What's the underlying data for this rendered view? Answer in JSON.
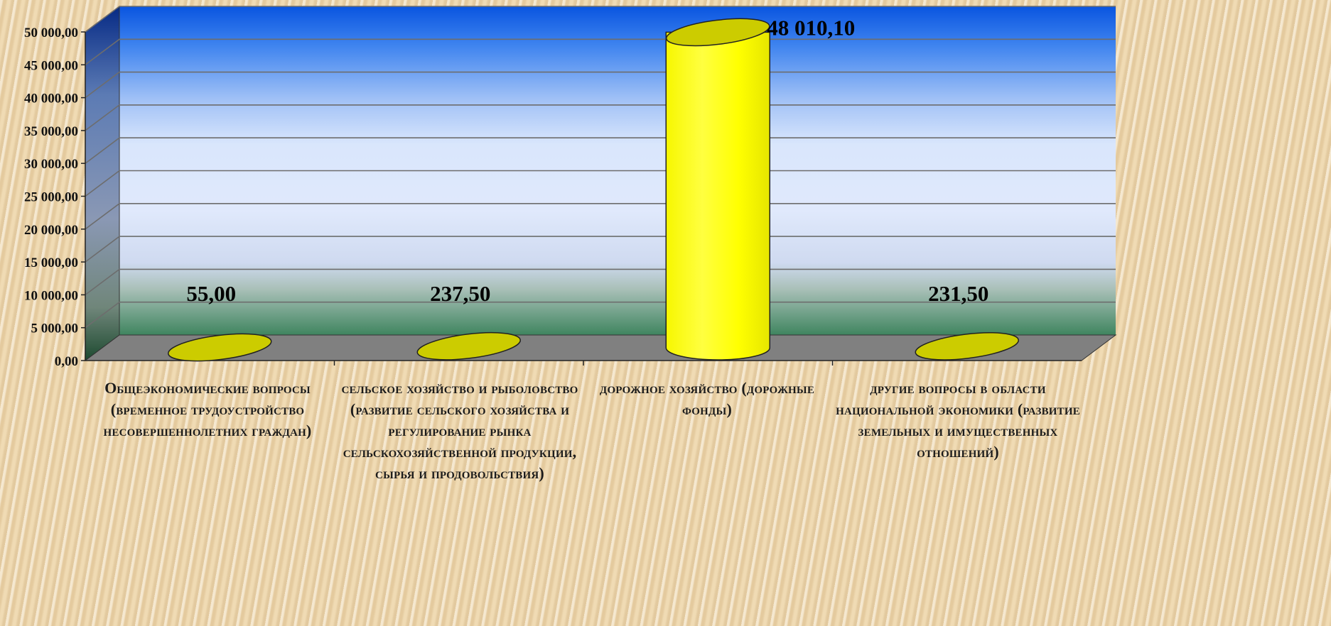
{
  "chart_data": {
    "type": "bar",
    "categories": [
      "Общеэкономические вопросы (временное трудоустройство несовершеннолетних граждан)",
      "сельское хозяйство и рыболовство (развитие сельского хозяйства и регулирование рынка сельскохозяйственной продукции, сырья и продовольствия)",
      "дорожное хозяйство (дорожные фонды)",
      "другие вопросы в области национальной экономики (развитие земельных и имущественных отношений)"
    ],
    "values": [
      55.0,
      237.5,
      48010.1,
      231.5
    ],
    "data_labels": [
      "55,00",
      "237,50",
      "48 010,10",
      "231,50"
    ],
    "title": "",
    "xlabel": "",
    "ylabel": "",
    "ylim": [
      0,
      50000
    ],
    "y_ticks": [
      0,
      5000,
      10000,
      15000,
      20000,
      25000,
      30000,
      35000,
      40000,
      45000,
      50000
    ],
    "y_tick_labels": [
      "0,00",
      "5 000,00",
      "10 000,00",
      "15 000,00",
      "20 000,00",
      "25 000,00",
      "30 000,00",
      "35 000,00",
      "40 000,00",
      "45 000,00",
      "50 000,00"
    ],
    "grid": true,
    "legend": "none",
    "bar_shape": "cylinder-3d",
    "colors": {
      "bar_fill": "#ffff00",
      "bar_top": "#cccc00",
      "wall_top": "#0a55e0",
      "wall_bottom": "#2e7a52",
      "floor": "#808080",
      "gridline": "#6d6d6d"
    }
  }
}
